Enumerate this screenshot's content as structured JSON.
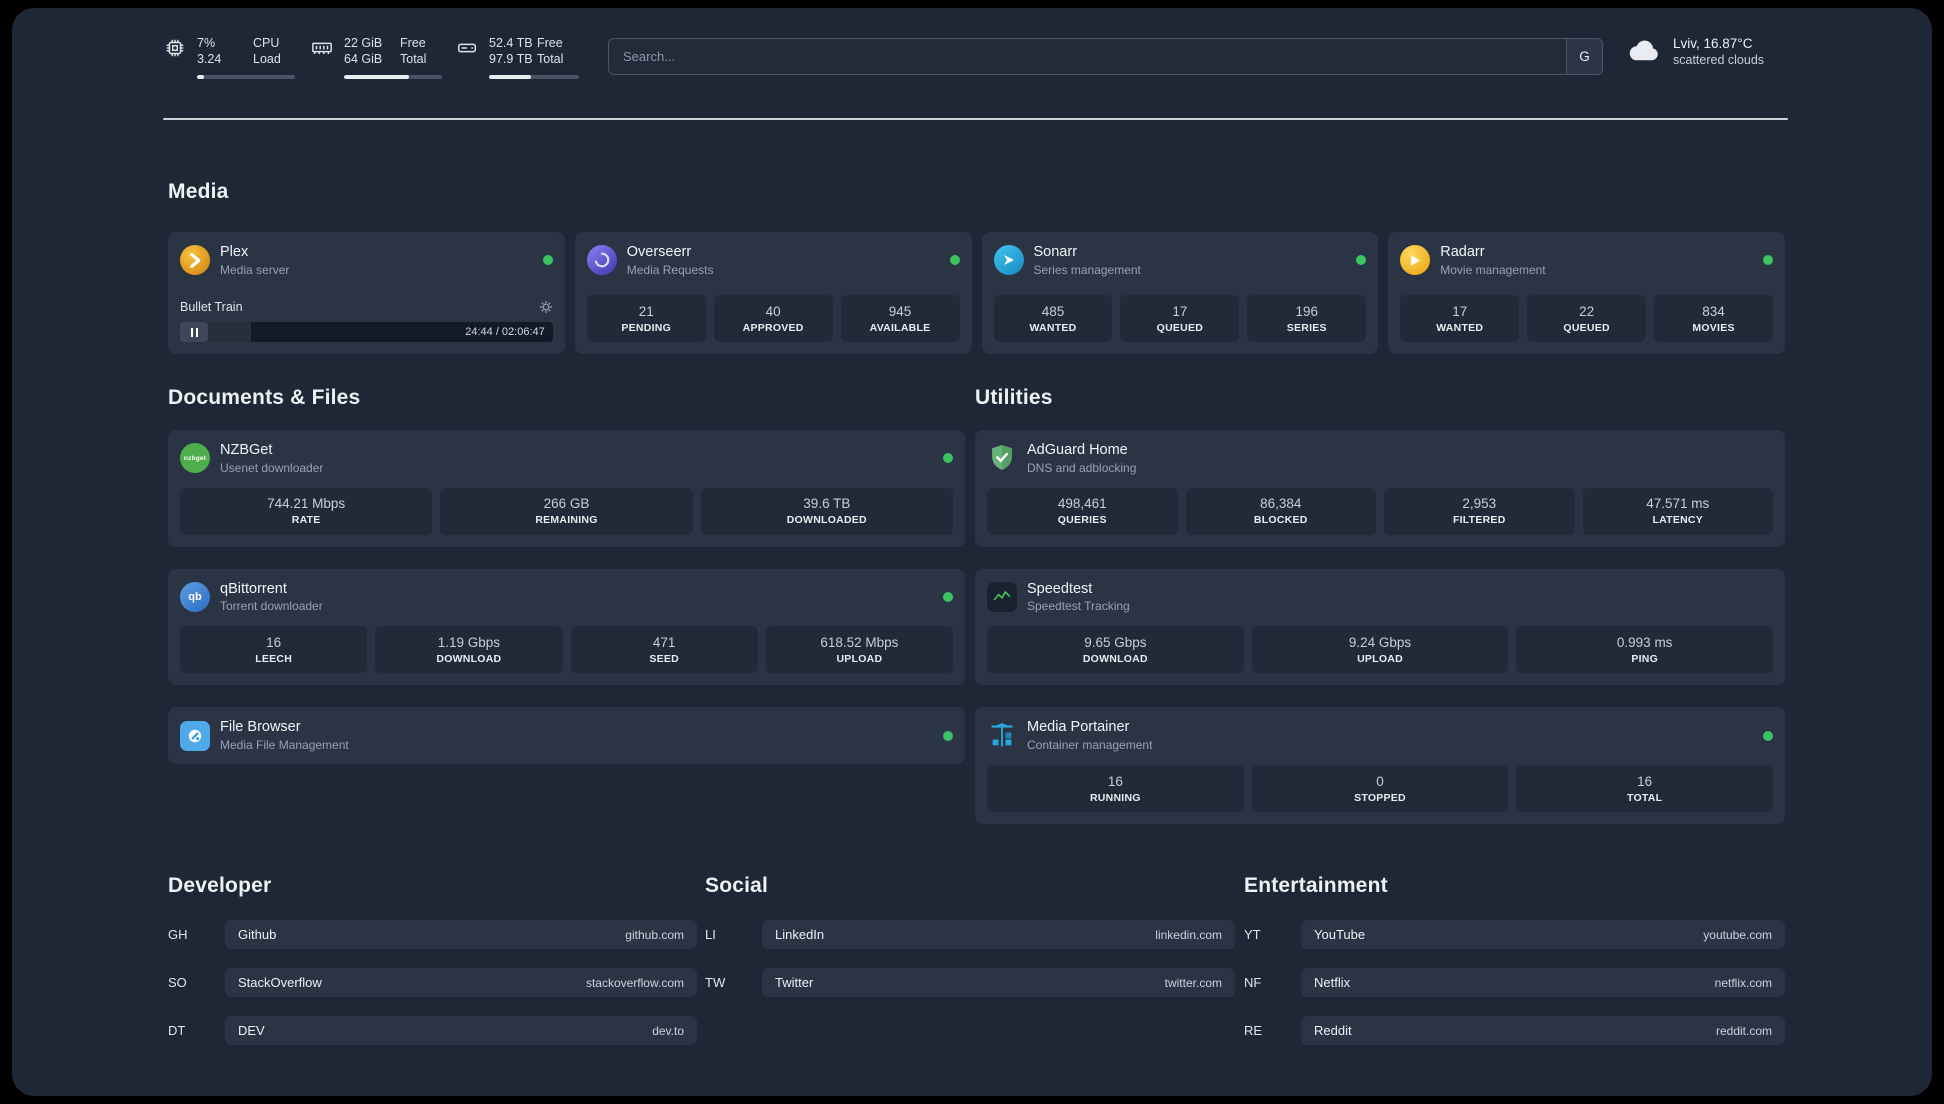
{
  "header": {
    "cpu": {
      "value_top": "7%",
      "value_bottom": "3.24",
      "label_top": "CPU",
      "label_bottom": "Load",
      "bar_percent": 7
    },
    "ram": {
      "value_top": "22 GiB",
      "value_bottom": "64 GiB",
      "label_top": "Free",
      "label_bottom": "Total",
      "bar_percent": 66
    },
    "disk": {
      "value_top": "52.4 TB",
      "value_bottom": "97.9 TB",
      "label_top": "Free",
      "label_bottom": "Total",
      "bar_percent": 47
    },
    "search": {
      "placeholder": "Search...",
      "engine_button": "G"
    },
    "weather": {
      "location": "Lviv, 16.87°C",
      "condition": "scattered clouds"
    }
  },
  "sections": {
    "media": {
      "title": "Media",
      "plex": {
        "name": "Plex",
        "desc": "Media server",
        "now_playing": "Bullet Train",
        "time": "24:44 / 02:06:47",
        "progress_percent": 19
      },
      "cards": [
        {
          "name": "Overseerr",
          "desc": "Media Requests",
          "stats": [
            {
              "value": "21",
              "label": "PENDING"
            },
            {
              "value": "40",
              "label": "APPROVED"
            },
            {
              "value": "945",
              "label": "AVAILABLE"
            }
          ]
        },
        {
          "name": "Sonarr",
          "desc": "Series management",
          "stats": [
            {
              "value": "485",
              "label": "WANTED"
            },
            {
              "value": "17",
              "label": "QUEUED"
            },
            {
              "value": "196",
              "label": "SERIES"
            }
          ]
        },
        {
          "name": "Radarr",
          "desc": "Movie management",
          "stats": [
            {
              "value": "17",
              "label": "WANTED"
            },
            {
              "value": "22",
              "label": "QUEUED"
            },
            {
              "value": "834",
              "label": "MOVIES"
            }
          ]
        }
      ]
    },
    "documents": {
      "title": "Documents & Files",
      "cards": [
        {
          "name": "NZBGet",
          "desc": "Usenet downloader",
          "stats": [
            {
              "value": "744.21 Mbps",
              "label": "RATE"
            },
            {
              "value": "266 GB",
              "label": "REMAINING"
            },
            {
              "value": "39.6 TB",
              "label": "DOWNLOADED"
            }
          ]
        },
        {
          "name": "qBittorrent",
          "desc": "Torrent downloader",
          "stats": [
            {
              "value": "16",
              "label": "LEECH"
            },
            {
              "value": "1.19 Gbps",
              "label": "DOWNLOAD"
            },
            {
              "value": "471",
              "label": "SEED"
            },
            {
              "value": "618.52 Mbps",
              "label": "UPLOAD"
            }
          ]
        },
        {
          "name": "File Browser",
          "desc": "Media File Management",
          "stats": []
        }
      ]
    },
    "utilities": {
      "title": "Utilities",
      "cards": [
        {
          "name": "AdGuard Home",
          "desc": "DNS and adblocking",
          "stats": [
            {
              "value": "498,461",
              "label": "QUERIES"
            },
            {
              "value": "86,384",
              "label": "BLOCKED"
            },
            {
              "value": "2,953",
              "label": "FILTERED"
            },
            {
              "value": "47.571 ms",
              "label": "LATENCY"
            }
          ]
        },
        {
          "name": "Speedtest",
          "desc": "Speedtest Tracking",
          "stats": [
            {
              "value": "9.65 Gbps",
              "label": "DOWNLOAD"
            },
            {
              "value": "9.24 Gbps",
              "label": "UPLOAD"
            },
            {
              "value": "0.993 ms",
              "label": "PING"
            }
          ]
        },
        {
          "name": "Media Portainer",
          "desc": "Container management",
          "stats": [
            {
              "value": "16",
              "label": "RUNNING"
            },
            {
              "value": "0",
              "label": "STOPPED"
            },
            {
              "value": "16",
              "label": "TOTAL"
            }
          ]
        }
      ]
    },
    "bookmarks": [
      {
        "title": "Developer",
        "items": [
          {
            "abbr": "GH",
            "name": "Github",
            "url": "github.com"
          },
          {
            "abbr": "SO",
            "name": "StackOverflow",
            "url": "stackoverflow.com"
          },
          {
            "abbr": "DT",
            "name": "DEV",
            "url": "dev.to"
          }
        ]
      },
      {
        "title": "Social",
        "items": [
          {
            "abbr": "LI",
            "name": "LinkedIn",
            "url": "linkedin.com"
          },
          {
            "abbr": "TW",
            "name": "Twitter",
            "url": "twitter.com"
          }
        ]
      },
      {
        "title": "Entertainment",
        "items": [
          {
            "abbr": "YT",
            "name": "YouTube",
            "url": "youtube.com"
          },
          {
            "abbr": "NF",
            "name": "Netflix",
            "url": "netflix.com"
          },
          {
            "abbr": "RE",
            "name": "Reddit",
            "url": "reddit.com"
          }
        ]
      }
    ]
  },
  "icons": {
    "nzbget_text": "nzbget",
    "qbittorrent_text": "qb"
  },
  "colors": {
    "status_online": "#3bc460",
    "plex": "#e5a00d",
    "overseerr": "#6158d6",
    "sonarr": "#35c5f4",
    "radarr": "#f0b02a",
    "nzbget": "#4fae4c",
    "qbittorrent": "#3e7bd4",
    "filebrowser": "#4da9e8",
    "adguard": "#67b279",
    "speedtest_line": "#40c057",
    "portainer": "#2aa7dd",
    "background": "#1e2735",
    "card": "#2a3444"
  }
}
